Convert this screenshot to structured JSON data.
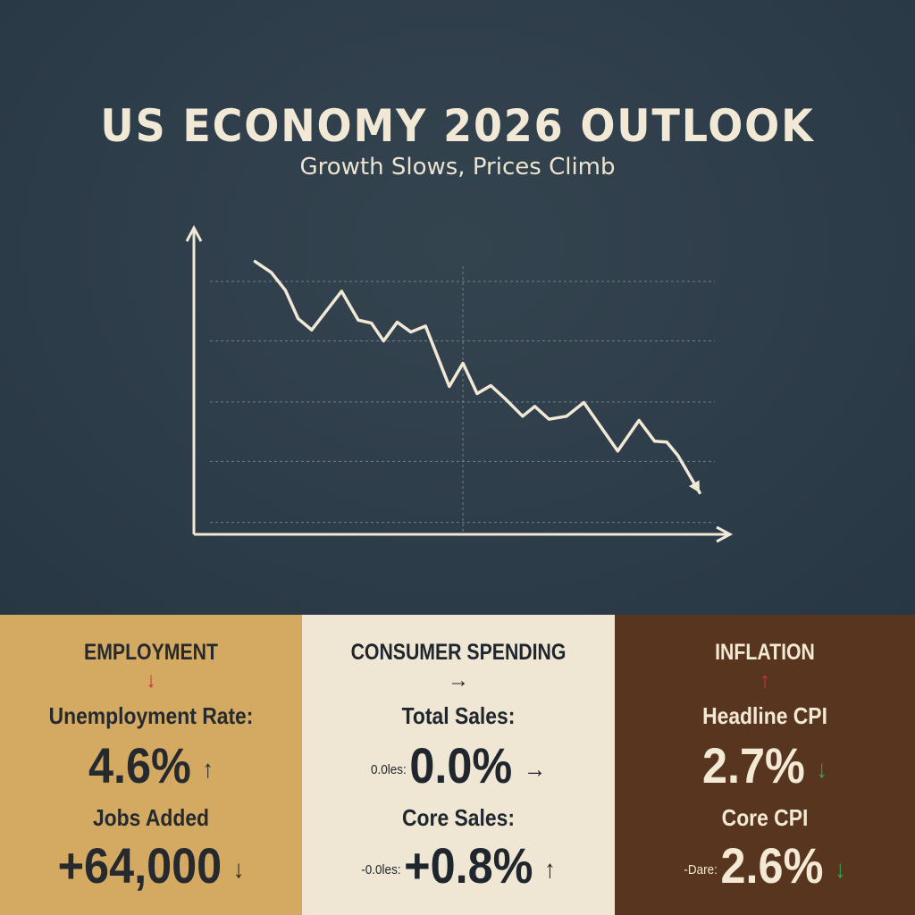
{
  "header": {
    "title": "US ECONOMY 2026 OUTLOOK",
    "subtitle": "Growth Slows, Prices Climb"
  },
  "colors": {
    "background": "#2f3e4c",
    "line": "#f1e8d6",
    "employment_panel": "#d4aa62",
    "spending_panel": "#efe6d3",
    "inflation_panel": "#57351f",
    "down_red": "#c8343a",
    "down_green": "#2fa552"
  },
  "chart_data": {
    "type": "line",
    "title": "",
    "xlabel": "",
    "ylabel": "",
    "grid": true,
    "xlim": [
      0,
      100
    ],
    "ylim": [
      0,
      100
    ],
    "y_gridlines": [
      4,
      24.5,
      44.5,
      65,
      85
    ],
    "x_gridlines": [
      53.2
    ],
    "series": [
      {
        "x": [
          12.1,
          15.3,
          18.1,
          20.6,
          23.3,
          29.2,
          32.5,
          35.1,
          37.5,
          40.2,
          42.9,
          45.8,
          50.5,
          53.2,
          56,
          58.7,
          61.6,
          65,
          67.4,
          70.2,
          73.7,
          77.1,
          83.8,
          88,
          91.1,
          93.5,
          95.7,
          100
        ],
        "y": [
          91.7,
          88,
          82,
          72.5,
          68.7,
          81.7,
          72,
          71,
          65,
          71.3,
          68,
          70,
          49.7,
          57.5,
          47.3,
          50,
          45.5,
          39.7,
          43,
          38.7,
          39.7,
          44.3,
          28,
          38.3,
          31.3,
          31,
          26.5,
          14
        ],
        "end_marker": "arrow"
      }
    ]
  },
  "panels": {
    "employment": {
      "heading": "EMPLOYMENT",
      "heading_arrow": "↓",
      "label1": "Unemployment Rate:",
      "value1": "4.6%",
      "arrow1": "↑",
      "label2": "Jobs Added",
      "value2": "+64,000",
      "arrow2": "↓"
    },
    "spending": {
      "heading": "CONSUMER SPENDING",
      "heading_arrow": "→",
      "label1": "Total Sales:",
      "prefix1": "0.0les:",
      "value1": "0.0%",
      "arrow1": "→",
      "label2": "Core Sales:",
      "prefix2": "-0.0les:",
      "value2": "+0.8%",
      "arrow2": "↑"
    },
    "inflation": {
      "heading": "INFLATION",
      "heading_arrow": "↑",
      "label1": "Headline CPI",
      "value1": "2.7%",
      "arrow1": "↓",
      "label2": "Core CPI",
      "prefix2": "-Dare:",
      "value2": "2.6%",
      "arrow2": "↓"
    }
  }
}
